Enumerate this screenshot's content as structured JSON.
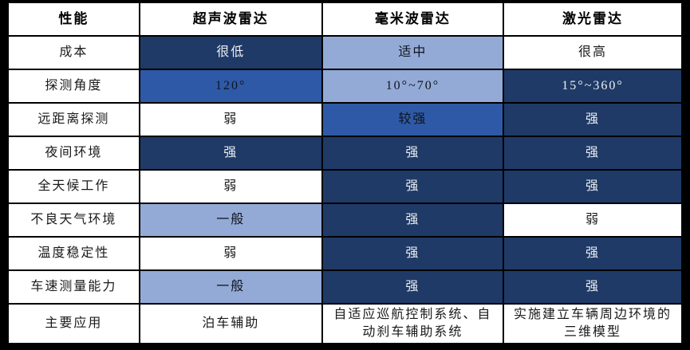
{
  "colors": {
    "strong_dark_navy": "#1f3a66",
    "medium_blue": "#2e59a6",
    "light_blue": "#93aad6",
    "white_cell": "#ffffff",
    "grid_border": "#000000",
    "light_text_on_dark": "#eef0f2",
    "dark_text": "#1a1a1a"
  },
  "chart_data": {
    "type": "table",
    "title": "",
    "columns": [
      "性能",
      "超声波雷达",
      "毫米波雷达",
      "激光雷达"
    ],
    "rows": [
      {
        "label": "成本",
        "cells": [
          {
            "text": "很低",
            "level": "dark"
          },
          {
            "text": "适中",
            "level": "light"
          },
          {
            "text": "很高",
            "level": "white"
          }
        ]
      },
      {
        "label": "探测角度",
        "cells": [
          {
            "text": "120°",
            "level": "medium"
          },
          {
            "text": "10°~70°",
            "level": "light"
          },
          {
            "text": "15°~360°",
            "level": "dark"
          }
        ]
      },
      {
        "label": "远距离探测",
        "cells": [
          {
            "text": "弱",
            "level": "white"
          },
          {
            "text": "较强",
            "level": "medium"
          },
          {
            "text": "强",
            "level": "dark"
          }
        ]
      },
      {
        "label": "夜间环境",
        "cells": [
          {
            "text": "强",
            "level": "dark"
          },
          {
            "text": "强",
            "level": "dark"
          },
          {
            "text": "强",
            "level": "dark"
          }
        ]
      },
      {
        "label": "全天候工作",
        "cells": [
          {
            "text": "弱",
            "level": "white"
          },
          {
            "text": "强",
            "level": "dark"
          },
          {
            "text": "强",
            "level": "dark"
          }
        ]
      },
      {
        "label": "不良天气环境",
        "cells": [
          {
            "text": "一般",
            "level": "light"
          },
          {
            "text": "强",
            "level": "dark"
          },
          {
            "text": "弱",
            "level": "white"
          }
        ]
      },
      {
        "label": "温度稳定性",
        "cells": [
          {
            "text": "弱",
            "level": "white"
          },
          {
            "text": "强",
            "level": "dark"
          },
          {
            "text": "强",
            "level": "dark"
          }
        ]
      },
      {
        "label": "车速测量能力",
        "cells": [
          {
            "text": "一般",
            "level": "light"
          },
          {
            "text": "强",
            "level": "dark"
          },
          {
            "text": "强",
            "level": "dark"
          }
        ]
      },
      {
        "label": "主要应用",
        "cells": [
          {
            "text": "泊车辅助",
            "level": "white"
          },
          {
            "text": "自适应巡航控制系统、自动刹车辅助系统",
            "level": "white"
          },
          {
            "text": "实施建立车辆周边环境的三维模型",
            "level": "white"
          }
        ]
      }
    ]
  }
}
